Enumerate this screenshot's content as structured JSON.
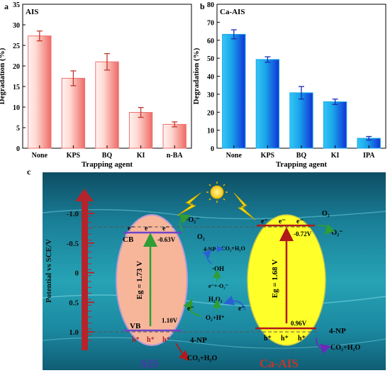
{
  "panel_labels": {
    "a": "a",
    "b": "b",
    "c": "c"
  },
  "chart_data": [
    {
      "type": "bar",
      "title": "AIS",
      "categories": [
        "None",
        "KPS",
        "BQ",
        "KI",
        "n-BA"
      ],
      "values": [
        27.3,
        17.0,
        21.0,
        8.7,
        5.8
      ],
      "errors": [
        1.2,
        1.8,
        2.0,
        1.2,
        0.6
      ],
      "xlabel": "Trapping agent",
      "ylabel": "Degradation (%)",
      "ylim": [
        0,
        35
      ],
      "yticks": [
        "0",
        "5",
        "10",
        "15",
        "20",
        "25",
        "30",
        "35"
      ],
      "bar_color": "#f07070",
      "grid": false
    },
    {
      "type": "bar",
      "title": "Ca-AIS",
      "categories": [
        "None",
        "KPS",
        "BQ",
        "KI",
        "IPA"
      ],
      "values": [
        63.3,
        49.3,
        30.8,
        25.8,
        5.5
      ],
      "errors": [
        2.5,
        1.5,
        3.5,
        1.5,
        1.0
      ],
      "xlabel": "Trapping agent",
      "ylabel": "Degradation (%)",
      "ylim": [
        0,
        80
      ],
      "yticks": [
        "0",
        "10",
        "20",
        "30",
        "40",
        "50",
        "60",
        "70",
        "80"
      ],
      "bar_color": "#19a8e8",
      "grid": false
    }
  ],
  "diagram": {
    "axis_label": "Potential vs SCE/V",
    "ticks": [
      "-1.0",
      "-0.5",
      "0",
      "0.5",
      "1.0"
    ],
    "tick_values": [
      -1.0,
      -0.5,
      0,
      0.5,
      1.0
    ],
    "ais": {
      "name": "AIS",
      "cb": "CB",
      "vb": "VB",
      "cb_potential": "-0.63V",
      "vb_potential": "1.10V",
      "gap": "Eg = 1.73 V",
      "electron": "e⁻",
      "hole": "h⁺",
      "o2": "O₂",
      "superoxide": "·O₂⁻",
      "np": "4-NP",
      "products": "CO₂+H₂O"
    },
    "ca_ais": {
      "name": "Ca-AIS",
      "cb_potential": "-0.72V",
      "vb_potential": "0.96V",
      "gap": "Eg = 1.68 V",
      "electron": "e⁻",
      "hole": "h⁺",
      "o2": "O₂",
      "superoxide": "·O₂⁻",
      "np": "4-NP",
      "products": "CO₂+H₂O"
    },
    "center": {
      "np": "4-NP",
      "products": "CO₂+H₂O",
      "oh": "·OH",
      "reaction": "e⁻+·O₂⁻",
      "h2o2": "H₂O₂",
      "o2h": "O₂+H⁺",
      "e_left": "e⁻",
      "e_right": "e⁻"
    },
    "colors": {
      "ais_ellipse": "#f7b69a",
      "ca_ellipse": "#ffff2a",
      "axis": "#c0392b",
      "bg": "#1f8fa0"
    }
  }
}
